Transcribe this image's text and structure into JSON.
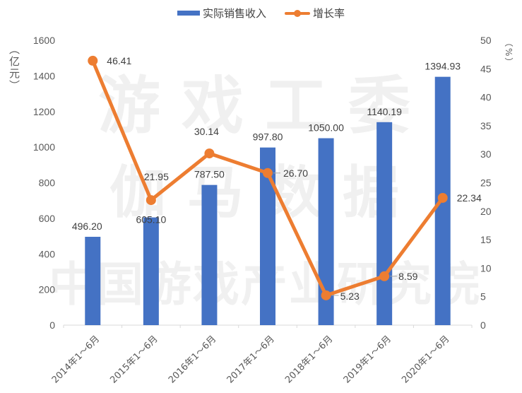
{
  "legend": {
    "bar_label": "实际销售收入",
    "line_label": "增长率"
  },
  "axes": {
    "left_unit": "（亿元）",
    "right_unit": "（%）"
  },
  "watermark": [
    "游戏工委",
    "伽马数据",
    "中国游戏产业研究院"
  ],
  "colors": {
    "bar": "#4472C4",
    "line": "#ED7D31",
    "axis_text": "#595959",
    "label_text": "#404040"
  },
  "chart_data": {
    "type": "bar+line",
    "title": "",
    "categories": [
      "2014年1～6月",
      "2015年1～6月",
      "2016年1～6月",
      "2017年1～6月",
      "2018年1～6月",
      "2019年1～6月",
      "2020年1～6月"
    ],
    "series": [
      {
        "name": "实际销售收入",
        "type": "bar",
        "axis": "left",
        "values": [
          496.2,
          605.1,
          787.5,
          997.8,
          1050.0,
          1140.19,
          1394.93
        ],
        "labels": [
          "496.20",
          "605.10",
          "787.50",
          "997.80",
          "1050.00",
          "1140.19",
          "1394.93"
        ]
      },
      {
        "name": "增长率",
        "type": "line",
        "axis": "right",
        "values": [
          46.41,
          21.95,
          30.14,
          26.7,
          5.23,
          8.59,
          22.34
        ],
        "labels": [
          "46.41",
          "21.95",
          "30.14",
          "26.70",
          "5.23",
          "8.59",
          "22.34"
        ]
      }
    ],
    "ylabel_left": "（亿元）",
    "ylabel_right": "（%）",
    "ylim_left": [
      0,
      1600
    ],
    "yticks_left": [
      0,
      200,
      400,
      600,
      800,
      1000,
      1200,
      1400,
      1600
    ],
    "ylim_right": [
      0,
      50
    ],
    "yticks_right": [
      0,
      5,
      10,
      15,
      20,
      25,
      30,
      35,
      40,
      45,
      50
    ],
    "grid": false,
    "legend_position": "top"
  }
}
